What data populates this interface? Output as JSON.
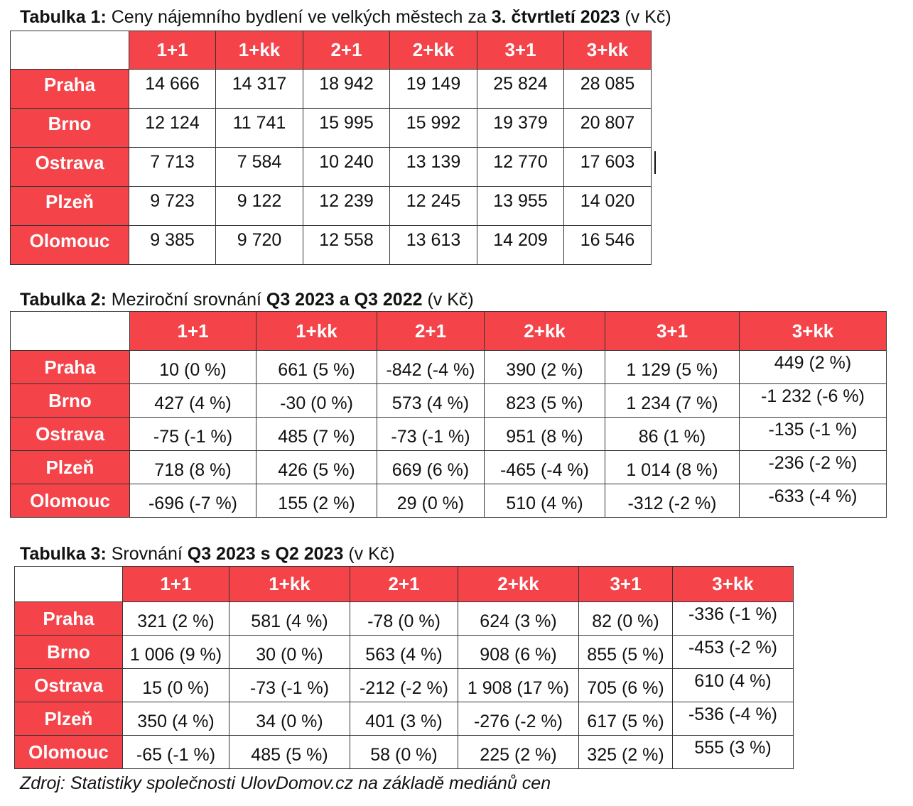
{
  "table1": {
    "caption_label": "Tabulka 1:",
    "caption_text": " Ceny nájemního bydlení ve velkých městech za ",
    "caption_bold": "3. čtvrtletí 2023",
    "caption_unit": " (v Kč)",
    "columns": [
      "1+1",
      "1+kk",
      "2+1",
      "2+kk",
      "3+1",
      "3+kk"
    ],
    "rows": [
      {
        "city": "Praha",
        "cells": [
          "14 666",
          "14 317",
          "18 942",
          "19 149",
          "25 824",
          "28 085"
        ]
      },
      {
        "city": "Brno",
        "cells": [
          "12 124",
          "11 741",
          "15 995",
          "15 992",
          "19 379",
          "20 807"
        ]
      },
      {
        "city": "Ostrava",
        "cells": [
          "7 713",
          "7 584",
          "10 240",
          "13 139",
          "12 770",
          "17 603"
        ]
      },
      {
        "city": "Plzeň",
        "cells": [
          "9 723",
          "9 122",
          "12 239",
          "12 245",
          "13 955",
          "14 020"
        ]
      },
      {
        "city": "Olomouc",
        "cells": [
          "9 385",
          "9 720",
          "12 558",
          "13 613",
          "14 209",
          "16 546"
        ]
      }
    ]
  },
  "table2": {
    "caption_label": "Tabulka 2:",
    "caption_text": " Meziroční srovnání ",
    "caption_bold": "Q3 2023 a Q3 2022",
    "caption_unit": " (v Kč)",
    "columns": [
      "1+1",
      "1+kk",
      "2+1",
      "2+kk",
      "3+1",
      "3+kk"
    ],
    "rows": [
      {
        "city": "Praha",
        "cells": [
          "10 (0 %)",
          "661 (5 %)",
          "-842 (-4 %)",
          "390 (2 %)",
          "1 129 (5 %)",
          "449 (2 %)"
        ]
      },
      {
        "city": "Brno",
        "cells": [
          "427 (4 %)",
          "-30 (0 %)",
          "573 (4 %)",
          "823 (5 %)",
          "1 234 (7 %)",
          "-1 232 (-6 %)"
        ]
      },
      {
        "city": "Ostrava",
        "cells": [
          "-75 (-1 %)",
          "485 (7 %)",
          "-73 (-1 %)",
          "951 (8 %)",
          "86 (1 %)",
          "-135 (-1 %)"
        ]
      },
      {
        "city": "Plzeň",
        "cells": [
          "718 (8 %)",
          "426 (5 %)",
          "669 (6 %)",
          "-465 (-4 %)",
          "1 014 (8 %)",
          "-236 (-2 %)"
        ]
      },
      {
        "city": "Olomouc",
        "cells": [
          "-696 (-7 %)",
          "155 (2 %)",
          "29 (0 %)",
          "510 (4 %)",
          "-312 (-2 %)",
          "-633 (-4 %)"
        ]
      }
    ]
  },
  "table3": {
    "caption_label": "Tabulka 3:",
    "caption_text": " Srovnání ",
    "caption_bold": "Q3 2023 s Q2 2023",
    "caption_unit": " (v Kč)",
    "columns": [
      "1+1",
      "1+kk",
      "2+1",
      "2+kk",
      "3+1",
      "3+kk"
    ],
    "rows": [
      {
        "city": "Praha",
        "cells": [
          "321 (2 %)",
          "581 (4 %)",
          "-78 (0 %)",
          "624 (3 %)",
          "82 (0 %)",
          "-336 (-1 %)"
        ]
      },
      {
        "city": "Brno",
        "cells": [
          "1 006 (9 %)",
          "30 (0 %)",
          "563 (4 %)",
          "908 (6 %)",
          "855 (5 %)",
          "-453 (-2 %)"
        ]
      },
      {
        "city": "Ostrava",
        "cells": [
          "15 (0 %)",
          "-73 (-1 %)",
          "-212 (-2 %)",
          "1 908 (17 %)",
          "705 (6 %)",
          "610 (4 %)"
        ]
      },
      {
        "city": "Plzeň",
        "cells": [
          "350 (4 %)",
          "34 (0 %)",
          "401 (3 %)",
          "-276 (-2 %)",
          "617 (5 %)",
          "-536 (-4 %)"
        ]
      },
      {
        "city": "Olomouc",
        "cells": [
          "-65 (-1 %)",
          "485 (5 %)",
          "58 (0 %)",
          "225 (2 %)",
          "325 (2 %)",
          "555 (3 %)"
        ]
      }
    ]
  },
  "source": "Zdroj: Statistiky společnosti UlovDomov.cz na základě mediánů cen",
  "colors": {
    "header_red": "#f5434a",
    "header_text": "#ffffff",
    "border": "#333333"
  }
}
